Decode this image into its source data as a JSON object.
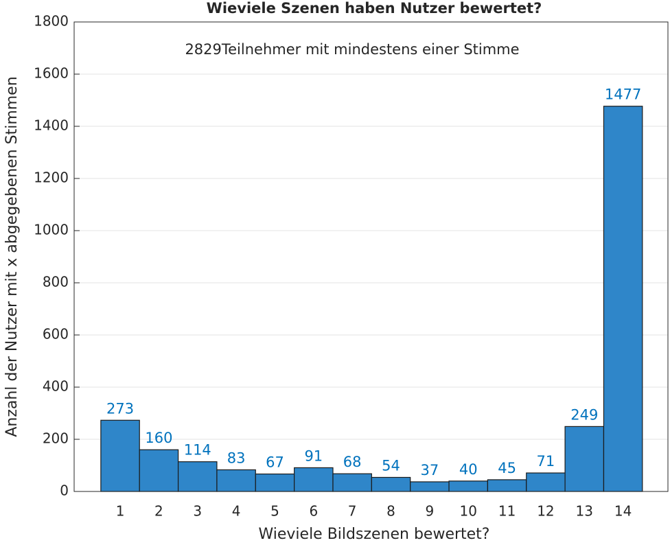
{
  "chart_data": {
    "type": "histogram",
    "title": "Wieviele Szenen haben Nutzer bewertet?",
    "annotation": "2829Teilnehmer mit mindestens einer Stimme",
    "x_label": "Wieviele Bildszenen bewertet?",
    "y_label": "Anzahl der Nutzer mit x abgegebenen Stimmen",
    "bins": [
      0.5,
      1.5,
      2.5,
      3.5,
      4.5,
      5.5,
      6.5,
      7.5,
      8.5,
      9.5,
      10.5,
      11.5,
      12.5,
      13.5,
      14.5
    ],
    "values": [
      273,
      160,
      114,
      83,
      67,
      91,
      68,
      54,
      37,
      40,
      45,
      71,
      249,
      1477
    ],
    "color": "#2f86c9",
    "label_color": "#0072bd",
    "xlim": [
      -0.19,
      15.16
    ],
    "xticks": [
      1,
      2,
      3,
      4,
      5,
      6,
      7,
      8,
      9,
      10,
      11,
      12,
      13,
      14
    ],
    "ylim": [
      0,
      1800
    ],
    "yticks": [
      0,
      200,
      400,
      600,
      800,
      1000,
      1200,
      1400,
      1600,
      1800
    ],
    "grid": true
  }
}
